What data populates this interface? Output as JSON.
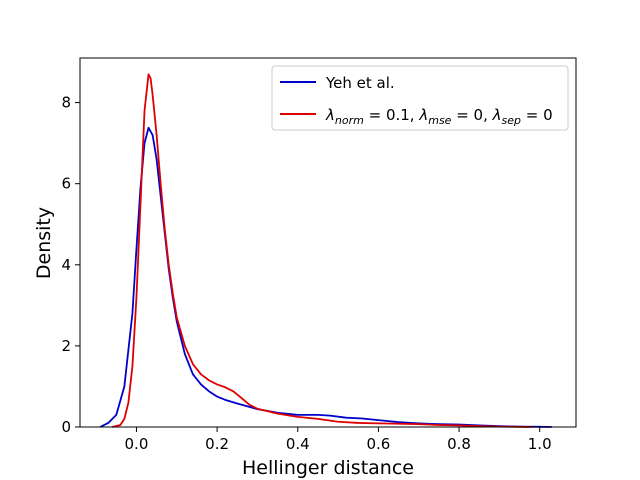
{
  "chart_data": {
    "type": "line",
    "title": "",
    "xlabel": "Hellinger distance",
    "ylabel": "Density",
    "xlim": [
      -0.14,
      1.09
    ],
    "ylim": [
      0,
      9.1
    ],
    "x_ticks": [
      0.0,
      0.2,
      0.4,
      0.6,
      0.8,
      1.0
    ],
    "x_tick_labels": [
      "0.0",
      "0.2",
      "0.4",
      "0.6",
      "0.8",
      "1.0"
    ],
    "y_ticks": [
      0,
      2,
      4,
      6,
      8
    ],
    "y_tick_labels": [
      "0",
      "2",
      "4",
      "6",
      "8"
    ],
    "grid": false,
    "legend_position": "top-right",
    "series": [
      {
        "name": "Yeh et al.",
        "color": "#0000cc",
        "points": [
          [
            -0.09,
            0.0
          ],
          [
            -0.07,
            0.1
          ],
          [
            -0.05,
            0.3
          ],
          [
            -0.03,
            1.0
          ],
          [
            -0.01,
            2.8
          ],
          [
            0.0,
            4.4
          ],
          [
            0.01,
            5.9
          ],
          [
            0.02,
            7.0
          ],
          [
            0.03,
            7.38
          ],
          [
            0.04,
            7.2
          ],
          [
            0.05,
            6.6
          ],
          [
            0.06,
            5.7
          ],
          [
            0.07,
            4.8
          ],
          [
            0.08,
            3.9
          ],
          [
            0.09,
            3.2
          ],
          [
            0.1,
            2.6
          ],
          [
            0.12,
            1.8
          ],
          [
            0.14,
            1.3
          ],
          [
            0.16,
            1.05
          ],
          [
            0.18,
            0.88
          ],
          [
            0.2,
            0.75
          ],
          [
            0.22,
            0.67
          ],
          [
            0.25,
            0.58
          ],
          [
            0.3,
            0.44
          ],
          [
            0.35,
            0.35
          ],
          [
            0.4,
            0.3
          ],
          [
            0.45,
            0.3
          ],
          [
            0.48,
            0.28
          ],
          [
            0.52,
            0.23
          ],
          [
            0.56,
            0.21
          ],
          [
            0.6,
            0.17
          ],
          [
            0.65,
            0.12
          ],
          [
            0.7,
            0.09
          ],
          [
            0.75,
            0.07
          ],
          [
            0.8,
            0.06
          ],
          [
            0.85,
            0.04
          ],
          [
            0.9,
            0.02
          ],
          [
            0.95,
            0.01
          ],
          [
            1.0,
            0.005
          ],
          [
            1.03,
            0.0
          ]
        ]
      },
      {
        "name": "λnorm = 0.1, λmse = 0, λsep = 0",
        "name_parts": [
          {
            "base": "λ",
            "sub": "norm",
            "value": " = 0.1, "
          },
          {
            "base": "λ",
            "sub": "mse",
            "value": " = 0, "
          },
          {
            "base": "λ",
            "sub": "sep",
            "value": " = 0"
          }
        ],
        "color": "#dd0000",
        "points": [
          [
            -0.06,
            0.0
          ],
          [
            -0.04,
            0.05
          ],
          [
            -0.03,
            0.2
          ],
          [
            -0.02,
            0.6
          ],
          [
            -0.01,
            1.5
          ],
          [
            0.0,
            3.2
          ],
          [
            0.01,
            5.5
          ],
          [
            0.02,
            7.8
          ],
          [
            0.03,
            8.7
          ],
          [
            0.035,
            8.6
          ],
          [
            0.04,
            8.2
          ],
          [
            0.05,
            7.2
          ],
          [
            0.06,
            6.0
          ],
          [
            0.07,
            4.9
          ],
          [
            0.08,
            4.0
          ],
          [
            0.09,
            3.3
          ],
          [
            0.1,
            2.7
          ],
          [
            0.12,
            2.0
          ],
          [
            0.14,
            1.55
          ],
          [
            0.16,
            1.3
          ],
          [
            0.18,
            1.15
          ],
          [
            0.2,
            1.05
          ],
          [
            0.22,
            0.98
          ],
          [
            0.24,
            0.88
          ],
          [
            0.26,
            0.72
          ],
          [
            0.28,
            0.55
          ],
          [
            0.3,
            0.45
          ],
          [
            0.35,
            0.33
          ],
          [
            0.4,
            0.25
          ],
          [
            0.45,
            0.2
          ],
          [
            0.5,
            0.13
          ],
          [
            0.55,
            0.1
          ],
          [
            0.6,
            0.09
          ],
          [
            0.65,
            0.08
          ],
          [
            0.7,
            0.07
          ],
          [
            0.75,
            0.05
          ],
          [
            0.8,
            0.04
          ],
          [
            0.85,
            0.02
          ],
          [
            0.9,
            0.01
          ],
          [
            0.95,
            0.005
          ],
          [
            0.98,
            0.0
          ]
        ]
      }
    ]
  }
}
